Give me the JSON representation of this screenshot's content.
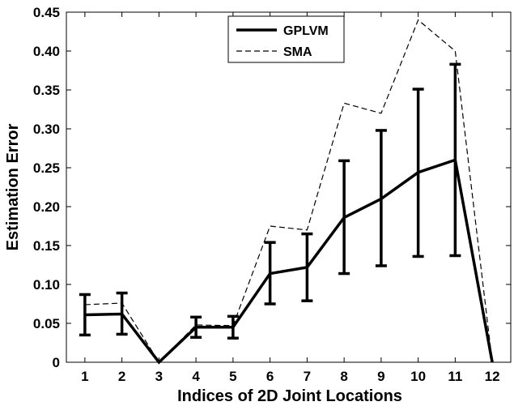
{
  "chart_data": {
    "type": "line",
    "xlabel": "Indices of 2D Joint Locations",
    "ylabel": "Estimation Error",
    "x": [
      1,
      2,
      3,
      4,
      5,
      6,
      7,
      8,
      9,
      10,
      11,
      12
    ],
    "xlim": [
      0.5,
      12.5
    ],
    "ylim": [
      0,
      0.45
    ],
    "yticks": [
      0,
      0.05,
      0.1,
      0.15,
      0.2,
      0.25,
      0.3,
      0.35,
      0.4,
      0.45
    ],
    "ytick_labels": [
      "0",
      "0.05",
      "0.10",
      "0.15",
      "0.20",
      "0.25",
      "0.30",
      "0.35",
      "0.40",
      "0.45"
    ],
    "xtick_labels": [
      "1",
      "2",
      "3",
      "4",
      "5",
      "6",
      "7",
      "8",
      "9",
      "10",
      "11",
      "12"
    ],
    "grid": false,
    "legend_position": "top-center",
    "series": [
      {
        "name": "GPLVM",
        "style": "solid",
        "color": "#000000",
        "values": [
          0.061,
          0.062,
          0.0,
          0.045,
          0.045,
          0.114,
          0.122,
          0.186,
          0.21,
          0.244,
          0.26,
          0.0
        ],
        "error_low": [
          0.035,
          0.036,
          null,
          0.032,
          0.031,
          0.075,
          0.079,
          0.114,
          0.124,
          0.136,
          0.137,
          null
        ],
        "error_high": [
          0.087,
          0.089,
          null,
          0.058,
          0.059,
          0.154,
          0.165,
          0.259,
          0.298,
          0.351,
          0.383,
          null
        ]
      },
      {
        "name": "SMA",
        "style": "dashed",
        "color": "#000000",
        "values": [
          0.074,
          0.076,
          0.0,
          0.048,
          0.047,
          0.175,
          0.17,
          0.333,
          0.32,
          0.44,
          0.4,
          0.0
        ]
      }
    ]
  }
}
